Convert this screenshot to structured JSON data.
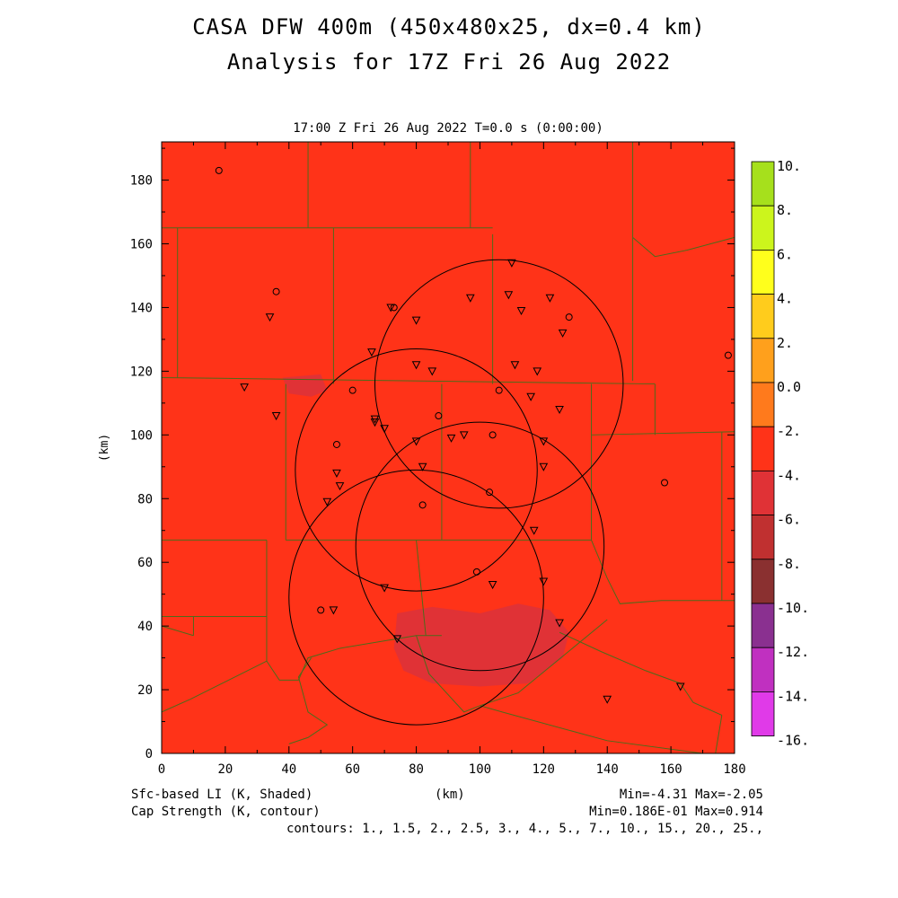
{
  "header": {
    "title_line1": "CASA DFW 400m (450x480x25, dx=0.4 km)",
    "title_line2": "Analysis for 17Z Fri 26 Aug 2022",
    "subtitle": "17:00 Z Fri 26 Aug 2022   T=0.0 s (0:00:00)"
  },
  "chart_data": {
    "type": "heatmap",
    "xlabel": "(km)",
    "ylabel": "(km)",
    "xlim": [
      0,
      180
    ],
    "ylim": [
      0,
      192
    ],
    "xticks": [
      0,
      20,
      40,
      60,
      80,
      100,
      120,
      140,
      160,
      180
    ],
    "yticks": [
      0,
      20,
      40,
      60,
      80,
      100,
      120,
      140,
      160,
      180
    ],
    "field_color": "#ff3318",
    "shaded_regions": [
      {
        "color": "#e03236",
        "points": [
          [
            38,
            118
          ],
          [
            50,
            119
          ],
          [
            52,
            114
          ],
          [
            47,
            112
          ],
          [
            40,
            113
          ]
        ]
      },
      {
        "color": "#e03236",
        "points": [
          [
            74,
            44
          ],
          [
            85,
            46
          ],
          [
            100,
            44
          ],
          [
            112,
            47
          ],
          [
            122,
            45
          ],
          [
            128,
            38
          ],
          [
            126,
            30
          ],
          [
            115,
            22
          ],
          [
            100,
            21
          ],
          [
            85,
            22
          ],
          [
            76,
            26
          ],
          [
            73,
            33
          ]
        ]
      }
    ],
    "radar_rings": [
      {
        "cx": 106,
        "cy": 116,
        "r": 39
      },
      {
        "cx": 80,
        "cy": 89,
        "r": 38
      },
      {
        "cx": 80,
        "cy": 49,
        "r": 40
      },
      {
        "cx": 100,
        "cy": 65,
        "r": 39
      }
    ],
    "markers": {
      "circle": [
        [
          18,
          183
        ],
        [
          36,
          145
        ],
        [
          73,
          140
        ],
        [
          128,
          137
        ],
        [
          178,
          125
        ],
        [
          60,
          114
        ],
        [
          106,
          114
        ],
        [
          87,
          106
        ],
        [
          55,
          97
        ],
        [
          104,
          100
        ],
        [
          103,
          82
        ],
        [
          82,
          78
        ],
        [
          158,
          85
        ],
        [
          99,
          57
        ],
        [
          50,
          45
        ]
      ],
      "triangle": [
        [
          34,
          137
        ],
        [
          26,
          115
        ],
        [
          36,
          106
        ],
        [
          66,
          126
        ],
        [
          72,
          140
        ],
        [
          80,
          136
        ],
        [
          97,
          143
        ],
        [
          110,
          154
        ],
        [
          109,
          144
        ],
        [
          113,
          139
        ],
        [
          122,
          143
        ],
        [
          126,
          132
        ],
        [
          80,
          122
        ],
        [
          85,
          120
        ],
        [
          111,
          122
        ],
        [
          118,
          120
        ],
        [
          116,
          112
        ],
        [
          125,
          108
        ],
        [
          67,
          105
        ],
        [
          67,
          104
        ],
        [
          70,
          102
        ],
        [
          80,
          98
        ],
        [
          91,
          99
        ],
        [
          95,
          100
        ],
        [
          120,
          98
        ],
        [
          82,
          90
        ],
        [
          55,
          88
        ],
        [
          56,
          84
        ],
        [
          52,
          79
        ],
        [
          120,
          90
        ],
        [
          117,
          70
        ],
        [
          70,
          52
        ],
        [
          104,
          53
        ],
        [
          120,
          54
        ],
        [
          54,
          45
        ],
        [
          125,
          41
        ],
        [
          74,
          36
        ],
        [
          140,
          17
        ],
        [
          163,
          21
        ]
      ]
    },
    "colorbar": {
      "labels": [
        "10.",
        "8.",
        "6.",
        "4.",
        "2.",
        "0.0",
        "-2.",
        "-4.",
        "-6.",
        "-8.",
        "-10.",
        "-12.",
        "-14.",
        "-16."
      ],
      "colors": [
        "#a6e01c",
        "#ccf51c",
        "#ffff1c",
        "#ffcc1c",
        "#ffa01c",
        "#ff7a1c",
        "#ff3318",
        "#e03236",
        "#c03030",
        "#8a3030",
        "#8a3090",
        "#c030c0",
        "#e03ae8"
      ]
    },
    "stats_line1": "Min=-4.31 Max=-2.05",
    "stats_line2": "Min=0.186E-01 Max=0.914",
    "contours": "contours: 1., 1.5, 2., 2.5, 3., 4., 5., 7., 10., 15., 20., 25.,"
  },
  "footer": {
    "field_label": "Sfc-based LI (K, Shaded)",
    "contour_label": "Cap Strength (K, contour)"
  }
}
